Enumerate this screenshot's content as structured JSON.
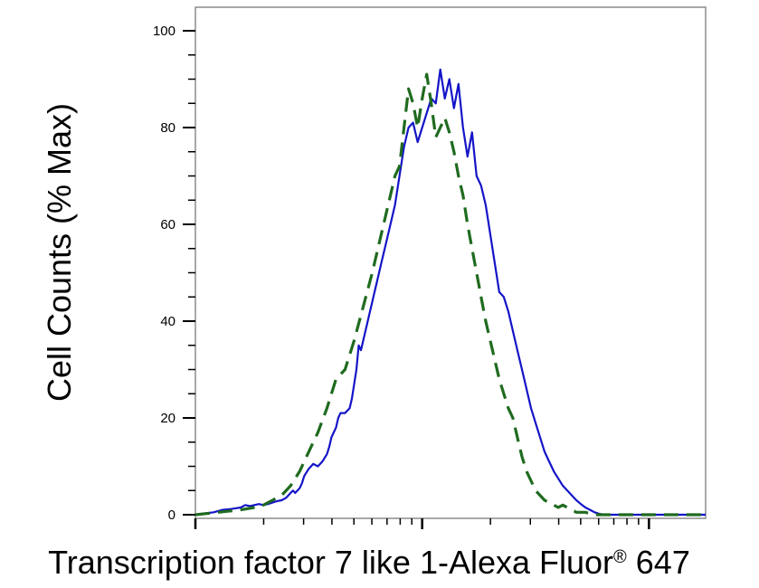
{
  "chart_data": {
    "type": "line",
    "title": "",
    "xlabel": "Transcription factor 7 like 1-Alexa Fluor",
    "xlabel_sup": "®",
    "xlabel_suffix": " 647",
    "ylabel": "Cell Counts (% Max)",
    "x_scale": "log",
    "x_decades": 2.25,
    "ylim": [
      0,
      100
    ],
    "yticks": [
      0,
      20,
      40,
      60,
      80,
      100
    ],
    "ytick_labels": [
      "0",
      "20",
      "40",
      "60",
      "80",
      "100"
    ],
    "grid": false,
    "legend": "none",
    "series": [
      {
        "color": "#1414c8",
        "style": "solid",
        "x": [
          0.0,
          0.03,
          0.08,
          0.12,
          0.16,
          0.2,
          0.22,
          0.24,
          0.26,
          0.28,
          0.3,
          0.32,
          0.34,
          0.36,
          0.38,
          0.4,
          0.42,
          0.43,
          0.44,
          0.46,
          0.47,
          0.48,
          0.5,
          0.52,
          0.54,
          0.56,
          0.58,
          0.59,
          0.6,
          0.62,
          0.63,
          0.64,
          0.66,
          0.67,
          0.68,
          0.69,
          0.7,
          0.71,
          0.72,
          0.73,
          0.74,
          0.75,
          0.76,
          0.77,
          0.78,
          0.79,
          0.8,
          0.81,
          0.82,
          0.84,
          0.86,
          0.88,
          0.9,
          0.92,
          0.94,
          0.96,
          0.98,
          1.0,
          1.02,
          1.04,
          1.06,
          1.08,
          1.1,
          1.12,
          1.14,
          1.16,
          1.18,
          1.2,
          1.22,
          1.24,
          1.26,
          1.28,
          1.3,
          1.32,
          1.34,
          1.36,
          1.38,
          1.4,
          1.42,
          1.44,
          1.46,
          1.48,
          1.5,
          1.52,
          1.54,
          1.56,
          1.58,
          1.6,
          1.62,
          1.64,
          1.66,
          1.68,
          1.7,
          1.72,
          1.74,
          1.76,
          1.78,
          1.8,
          1.82,
          1.84,
          1.86,
          1.88,
          1.9,
          1.92,
          1.94,
          1.96,
          1.98,
          2.0,
          2.02,
          2.04,
          2.06,
          2.08,
          2.1,
          2.12,
          2.14,
          2.16,
          2.18,
          2.2,
          2.22,
          2.25
        ],
        "y": [
          0.0,
          0.2,
          0.5,
          1.0,
          1.2,
          1.5,
          2.0,
          1.8,
          2.0,
          2.2,
          2.0,
          2.2,
          2.5,
          2.8,
          3.0,
          3.5,
          4.5,
          5.0,
          4.5,
          5.5,
          6.5,
          8.0,
          9.5,
          10.5,
          10.0,
          11.0,
          12.5,
          14.0,
          16.0,
          18.0,
          20.0,
          21.0,
          21.0,
          21.5,
          22.0,
          24.0,
          27.0,
          30.0,
          35.0,
          34.0,
          36.0,
          38.0,
          40.0,
          42.0,
          44.0,
          46.0,
          48.0,
          50.0,
          52.0,
          56.0,
          60.0,
          64.0,
          70.0,
          76.0,
          80.0,
          81.0,
          77.0,
          80.0,
          83.0,
          86.0,
          85.0,
          92.0,
          86.0,
          90.0,
          84.0,
          89.0,
          80.0,
          74.0,
          79.0,
          70.0,
          68.0,
          64.0,
          58.0,
          52.0,
          46.0,
          45.0,
          42.0,
          38.0,
          34.0,
          30.0,
          26.0,
          22.0,
          19.0,
          16.0,
          13.0,
          11.0,
          9.0,
          7.5,
          6.0,
          5.0,
          4.0,
          3.0,
          2.2,
          1.5,
          1.0,
          0.5,
          0.2,
          0.0,
          0.0,
          0.0,
          0.0,
          0.0,
          0.0,
          0.0,
          0.0,
          0.0,
          0.0,
          0.0,
          0.0,
          0.0,
          0.0,
          0.0,
          0.0,
          0.0,
          0.0,
          0.0,
          0.0,
          0.0,
          0.0,
          0.0
        ]
      },
      {
        "color": "#1f6b1f",
        "style": "dashed",
        "x": [
          0.0,
          0.1,
          0.2,
          0.26,
          0.3,
          0.34,
          0.38,
          0.42,
          0.46,
          0.5,
          0.54,
          0.58,
          0.62,
          0.66,
          0.7,
          0.74,
          0.78,
          0.82,
          0.86,
          0.88,
          0.9,
          0.92,
          0.94,
          0.96,
          0.98,
          1.0,
          1.02,
          1.04,
          1.06,
          1.08,
          1.1,
          1.12,
          1.14,
          1.16,
          1.18,
          1.2,
          1.22,
          1.24,
          1.26,
          1.28,
          1.3,
          1.32,
          1.34,
          1.36,
          1.38,
          1.4,
          1.42,
          1.44,
          1.46,
          1.48,
          1.5,
          1.52,
          1.54,
          1.56,
          1.58,
          1.6,
          1.62,
          1.64,
          1.66,
          1.68,
          1.7,
          1.72,
          1.74,
          1.76,
          1.78,
          1.8,
          1.82,
          1.84,
          1.86,
          1.88,
          1.9,
          1.92,
          1.94,
          1.96,
          1.98,
          2.0,
          2.04,
          2.08,
          2.12,
          2.16,
          2.2,
          2.25
        ],
        "y": [
          0.0,
          0.5,
          1.0,
          1.5,
          2.0,
          3.0,
          4.0,
          6.0,
          9.0,
          13.0,
          17.0,
          22.0,
          28.0,
          30.0,
          36.0,
          43.0,
          50.0,
          58.0,
          66.0,
          70.0,
          72.0,
          80.0,
          88.0,
          85.0,
          80.0,
          86.0,
          91.0,
          85.0,
          78.0,
          80.0,
          82.0,
          79.0,
          75.0,
          70.0,
          66.0,
          60.0,
          55.0,
          50.0,
          45.0,
          40.0,
          36.0,
          32.0,
          28.0,
          25.0,
          22.0,
          20.0,
          16.0,
          12.0,
          9.0,
          7.0,
          5.0,
          4.0,
          3.0,
          2.5,
          2.0,
          1.5,
          2.0,
          1.5,
          1.0,
          0.5,
          0.5,
          0.5,
          0.2,
          0.0,
          0.0,
          0.0,
          0.0,
          0.0,
          0.0,
          0.0,
          0.0,
          0.0,
          0.0,
          0.0,
          0.0,
          0.0,
          0.0,
          0.0,
          0.0,
          0.0,
          0.0,
          0.0
        ]
      }
    ]
  }
}
